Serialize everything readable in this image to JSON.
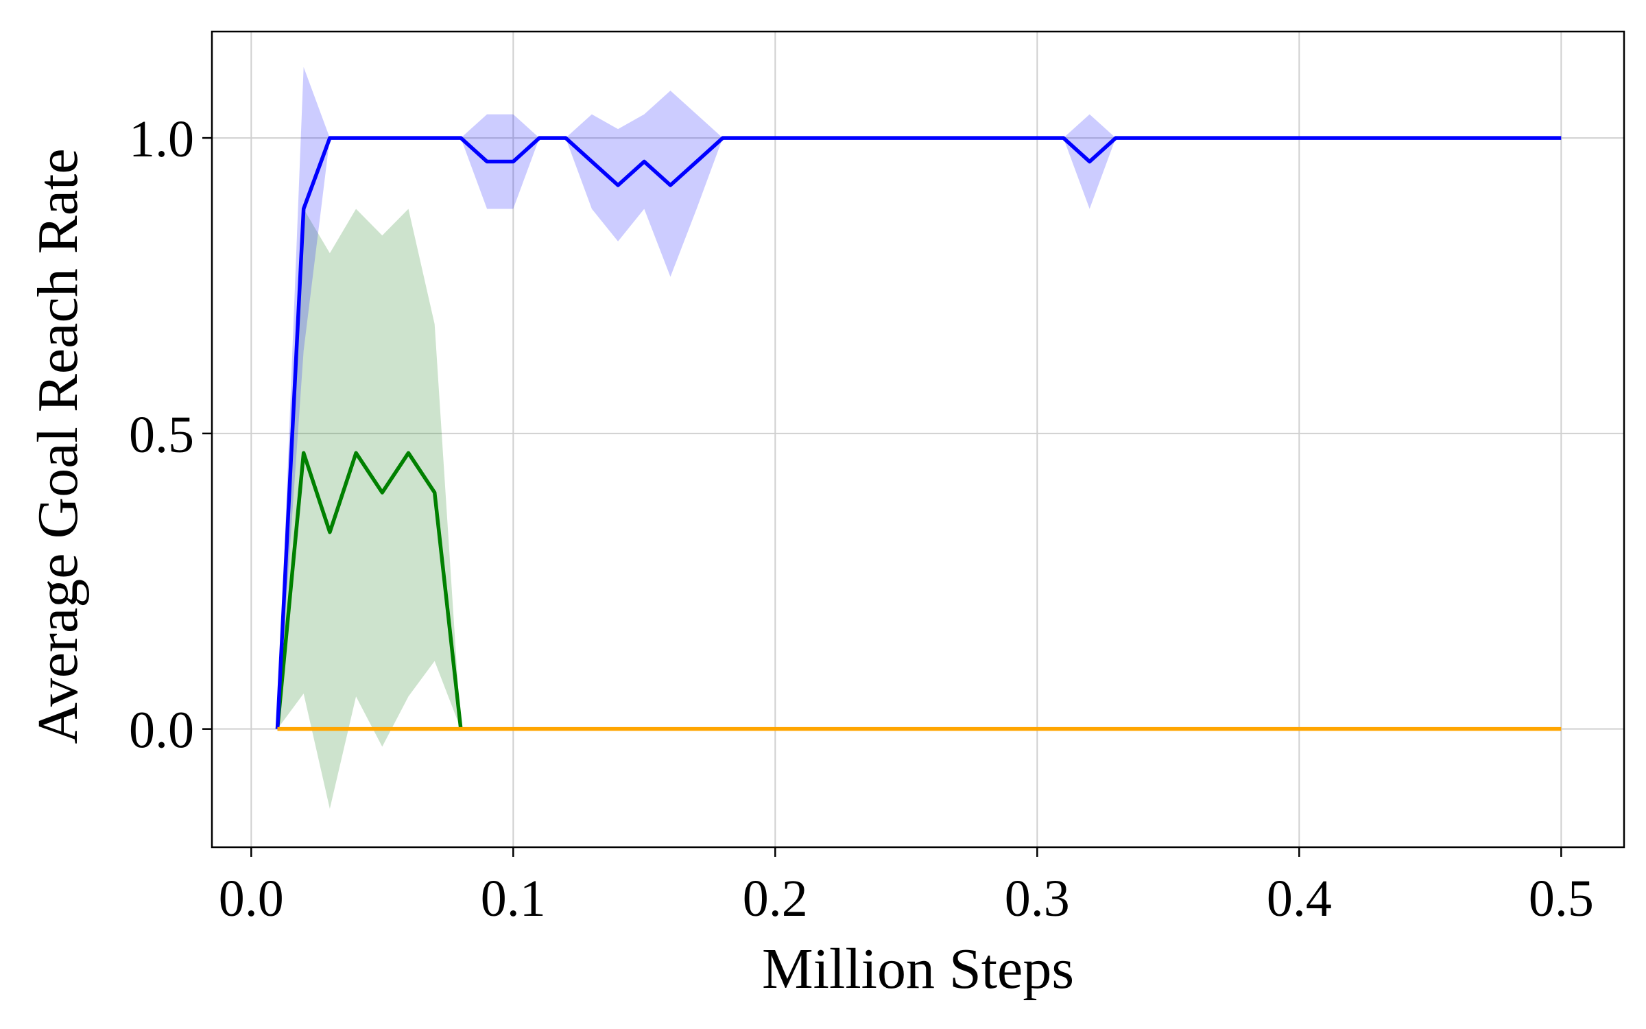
{
  "chart_data": {
    "type": "line",
    "title": "",
    "xlabel": "Million Steps",
    "ylabel": "Average Goal Reach Rate",
    "xlim": [
      -0.015,
      0.524
    ],
    "ylim": [
      -0.2,
      1.18
    ],
    "xticks": [
      0.0,
      0.1,
      0.2,
      0.3,
      0.4,
      0.5
    ],
    "xtick_labels": [
      "0.0",
      "0.1",
      "0.2",
      "0.3",
      "0.4",
      "0.5"
    ],
    "yticks": [
      0.0,
      0.5,
      1.0
    ],
    "ytick_labels": [
      "0.0",
      "0.5",
      "1.0"
    ],
    "grid": true,
    "legend": "none",
    "series": [
      {
        "color": "#2f8c2f",
        "line_color": "#008000",
        "fill_color": "#2e8b2e",
        "fill_opacity": 0.24,
        "x": [
          0.01,
          0.02,
          0.03,
          0.04,
          0.05,
          0.06,
          0.07,
          0.08
        ],
        "y": [
          0.0,
          0.467,
          0.333,
          0.467,
          0.4,
          0.467,
          0.4,
          0.0
        ],
        "lower": [
          0.0,
          0.06,
          -0.135,
          0.055,
          -0.03,
          0.055,
          0.115,
          0.0
        ],
        "upper": [
          0.0,
          0.88,
          0.805,
          0.88,
          0.835,
          0.88,
          0.685,
          0.0
        ]
      },
      {
        "line_color": "#0000ff",
        "fill_color": "#0000ff",
        "fill_opacity": 0.2,
        "x": [
          0.01,
          0.02,
          0.03,
          0.04,
          0.05,
          0.06,
          0.07,
          0.08,
          0.09,
          0.1,
          0.11,
          0.12,
          0.13,
          0.14,
          0.15,
          0.16,
          0.17,
          0.18,
          0.19,
          0.2,
          0.21,
          0.22,
          0.23,
          0.24,
          0.25,
          0.26,
          0.27,
          0.28,
          0.29,
          0.3,
          0.31,
          0.32,
          0.33,
          0.34,
          0.35,
          0.36,
          0.37,
          0.38,
          0.39,
          0.4,
          0.41,
          0.42,
          0.43,
          0.44,
          0.45,
          0.46,
          0.47,
          0.48,
          0.49,
          0.5
        ],
        "y": [
          0.0,
          0.88,
          1.0,
          1.0,
          1.0,
          1.0,
          1.0,
          1.0,
          0.96,
          0.96,
          1.0,
          1.0,
          0.96,
          0.92,
          0.96,
          0.92,
          0.96,
          1.0,
          1.0,
          1.0,
          1.0,
          1.0,
          1.0,
          1.0,
          1.0,
          1.0,
          1.0,
          1.0,
          1.0,
          1.0,
          1.0,
          0.96,
          1.0,
          1.0,
          1.0,
          1.0,
          1.0,
          1.0,
          1.0,
          1.0,
          1.0,
          1.0,
          1.0,
          1.0,
          1.0,
          1.0,
          1.0,
          1.0,
          1.0,
          1.0
        ],
        "lower": [
          0.0,
          0.64,
          1.0,
          1.0,
          1.0,
          1.0,
          1.0,
          1.0,
          0.88,
          0.88,
          1.0,
          1.0,
          0.88,
          0.825,
          0.88,
          0.765,
          0.88,
          1.0,
          1.0,
          1.0,
          1.0,
          1.0,
          1.0,
          1.0,
          1.0,
          1.0,
          1.0,
          1.0,
          1.0,
          1.0,
          1.0,
          0.88,
          1.0,
          1.0,
          1.0,
          1.0,
          1.0,
          1.0,
          1.0,
          1.0,
          1.0,
          1.0,
          1.0,
          1.0,
          1.0,
          1.0,
          1.0,
          1.0,
          1.0,
          1.0
        ],
        "upper": [
          0.0,
          1.12,
          1.0,
          1.0,
          1.0,
          1.0,
          1.0,
          1.0,
          1.04,
          1.04,
          1.0,
          1.0,
          1.04,
          1.015,
          1.04,
          1.08,
          1.04,
          1.0,
          1.0,
          1.0,
          1.0,
          1.0,
          1.0,
          1.0,
          1.0,
          1.0,
          1.0,
          1.0,
          1.0,
          1.0,
          1.0,
          1.04,
          1.0,
          1.0,
          1.0,
          1.0,
          1.0,
          1.0,
          1.0,
          1.0,
          1.0,
          1.0,
          1.0,
          1.0,
          1.0,
          1.0,
          1.0,
          1.0,
          1.0,
          1.0
        ]
      },
      {
        "line_color": "#ffa500",
        "fill_color": "#ffa500",
        "fill_opacity": 0.2,
        "x": [
          0.01,
          0.5
        ],
        "y": [
          0.0,
          0.0
        ],
        "lower": [
          0.0,
          0.0
        ],
        "upper": [
          0.0,
          0.0
        ]
      }
    ]
  }
}
